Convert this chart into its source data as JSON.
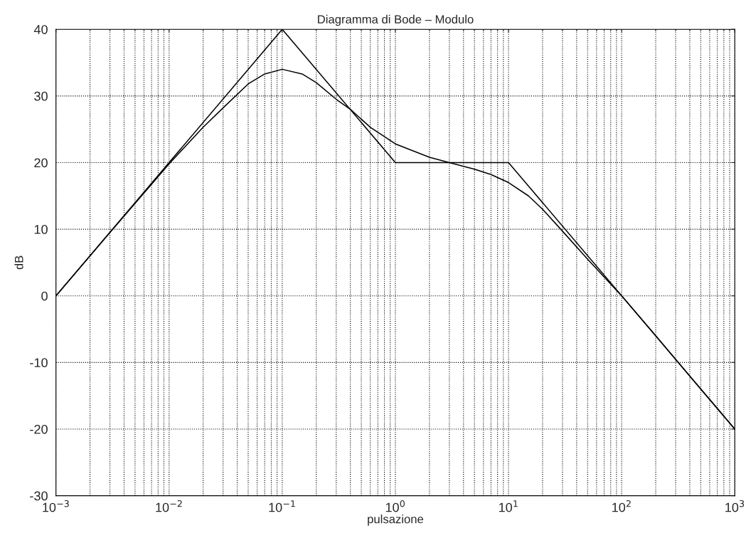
{
  "chart_data": {
    "type": "line",
    "title": "Diagramma di Bode – Modulo",
    "xlabel": "pulsazione",
    "ylabel": "dB",
    "log": "x",
    "xlim": [
      0.001,
      1000
    ],
    "ylim": [
      -30,
      40
    ],
    "xticks": [
      {
        "value": 0.001,
        "label": "10$^{−3}$"
      },
      {
        "value": 0.01,
        "label": "10$^{−2}$"
      },
      {
        "value": 0.1,
        "label": "10$^{−1}$"
      },
      {
        "value": 1,
        "label": "10$^{0}$"
      },
      {
        "value": 10,
        "label": "10$^{1}$"
      },
      {
        "value": 100,
        "label": "10$^{2}$"
      },
      {
        "value": 1000,
        "label": "10$^{3}$"
      }
    ],
    "yticks": [
      -30,
      -20,
      -10,
      0,
      10,
      20,
      30,
      40
    ],
    "grid": true,
    "line_style": "solid",
    "marker": "none",
    "series": [
      {
        "color": "#000000",
        "x": [
          0.001,
          0.1,
          1,
          10,
          1000
        ],
        "values": [
          0,
          40,
          20,
          20,
          -20
        ]
      },
      {
        "color": "#000000",
        "x": [
          0.001,
          0.003,
          0.01,
          0.02,
          0.03,
          0.05,
          0.07,
          0.1,
          0.15,
          0.2,
          0.3,
          0.4,
          0.6,
          1,
          2,
          3,
          5,
          7,
          10,
          15,
          20,
          30,
          50,
          100,
          200,
          500,
          1000
        ],
        "values": [
          0,
          9.5,
          19.8,
          25.3,
          28.2,
          31.8,
          33.3,
          34,
          33.3,
          32,
          29.5,
          28,
          25.3,
          22.8,
          20.8,
          20,
          19,
          18.2,
          17,
          15,
          13,
          9.7,
          5.5,
          0,
          -6,
          -14,
          -20
        ]
      }
    ]
  }
}
